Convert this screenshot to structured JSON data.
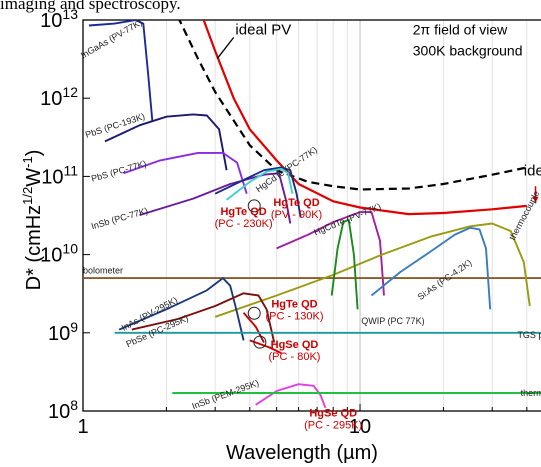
{
  "caption": "imaging and spectroscopy.",
  "chart_data": {
    "type": "line",
    "xlabel": "Wavelength (µm)",
    "ylabel": "D* (cmHz^1/2W^-1)",
    "xscale": "log",
    "yscale": "log",
    "xlim": [
      1,
      45
    ],
    "ylim": [
      100000000.0,
      10000000000000.0
    ],
    "xticks": [
      "1",
      "10"
    ],
    "yticks": [
      "10^13",
      "10^12",
      "10^11",
      "10^10",
      "10^9",
      "10^8"
    ],
    "grid": true,
    "annotation": [
      "2π field of view",
      "300K background"
    ],
    "series": [
      {
        "name": "ideal PV",
        "color": "#000000",
        "dash": true,
        "points": [
          [
            2.2,
            11000000000000.0
          ],
          [
            2.6,
            3200000000000.0
          ],
          [
            3,
            1200000000000.0
          ],
          [
            4,
            250000000000.0
          ],
          [
            5,
            120000000000.0
          ],
          [
            6.5,
            85000000000.0
          ],
          [
            8,
            75000000000.0
          ],
          [
            10,
            68000000000.0
          ],
          [
            15,
            70000000000.0
          ],
          [
            20,
            80000000000.0
          ],
          [
            30,
            105000000000.0
          ],
          [
            40,
            130000000000.0
          ]
        ]
      },
      {
        "name": "ideal PC",
        "color": "#e00000",
        "points": [
          [
            2.7,
            11000000000000.0
          ],
          [
            3,
            4000000000000.0
          ],
          [
            3.5,
            1000000000000.0
          ],
          [
            4,
            400000000000.0
          ],
          [
            5,
            160000000000.0
          ],
          [
            6,
            80000000000.0
          ],
          [
            8,
            48000000000.0
          ],
          [
            10,
            40000000000.0
          ],
          [
            15,
            33000000000.0
          ],
          [
            20,
            34000000000.0
          ],
          [
            30,
            38000000000.0
          ],
          [
            40,
            42000000000.0
          ]
        ]
      },
      {
        "name": "InGaAs (PV-77K)",
        "color": "#1a2a9a",
        "points": [
          [
            1.05,
            8500000000000.0
          ],
          [
            1.3,
            9000000000000.0
          ],
          [
            1.55,
            10000000000000.0
          ],
          [
            1.65,
            9000000000000.0
          ],
          [
            1.72,
            2000000000000.0
          ],
          [
            1.78,
            500000000000.0
          ]
        ]
      },
      {
        "name": "PbS (PC-193K)",
        "color": "#1a1a6e",
        "points": [
          [
            1.2,
            280000000000.0
          ],
          [
            1.6,
            450000000000.0
          ],
          [
            2,
            580000000000.0
          ],
          [
            2.5,
            620000000000.0
          ],
          [
            2.8,
            600000000000.0
          ],
          [
            3.1,
            400000000000.0
          ],
          [
            3.3,
            120000000000.0
          ]
        ]
      },
      {
        "name": "PbS (PC-77K)",
        "color": "#8a2be2",
        "points": [
          [
            1.4,
            110000000000.0
          ],
          [
            1.9,
            160000000000.0
          ],
          [
            2.6,
            200000000000.0
          ],
          [
            3.2,
            200000000000.0
          ],
          [
            3.6,
            150000000000.0
          ],
          [
            3.9,
            60000000000.0
          ]
        ]
      },
      {
        "name": "InSb (PC-77K)",
        "color": "#6a1b9a",
        "points": [
          [
            1.6,
            32000000000.0
          ],
          [
            2.5,
            52000000000.0
          ],
          [
            3.4,
            80000000000.0
          ],
          [
            4.5,
            105000000000.0
          ],
          [
            5.1,
            110000000000.0
          ],
          [
            5.4,
            50000000000.0
          ],
          [
            5.6,
            25000000000.0
          ]
        ]
      },
      {
        "name": "HgCdTe (PC-77K)",
        "color": "#1a2a8a",
        "points": [
          [
            3,
            60000000000.0
          ],
          [
            3.8,
            90000000000.0
          ],
          [
            4.5,
            120000000000.0
          ],
          [
            5.2,
            130000000000.0
          ],
          [
            5.6,
            120000000000.0
          ],
          [
            5.9,
            60000000000.0
          ],
          [
            6.1,
            30000000000.0
          ]
        ]
      },
      {
        "name": "HgTe QD (PV - 90K)",
        "color": "#40d0d0",
        "points": [
          [
            3.3,
            50000000000.0
          ],
          [
            4,
            85000000000.0
          ],
          [
            4.6,
            115000000000.0
          ],
          [
            5.2,
            125000000000.0
          ],
          [
            5.5,
            110000000000.0
          ],
          [
            5.7,
            60000000000.0
          ]
        ]
      },
      {
        "name": "HgCdTe (PV-77K)",
        "color": "#a020a0",
        "points": [
          [
            5,
            12000000000.0
          ],
          [
            6.5,
            18000000000.0
          ],
          [
            8,
            26000000000.0
          ],
          [
            10,
            35000000000.0
          ],
          [
            11,
            35000000000.0
          ],
          [
            11.8,
            15000000000.0
          ],
          [
            12.2,
            3000000000.0
          ]
        ]
      },
      {
        "name": "bolometer",
        "color": "#8b5a2b",
        "points": [
          [
            1,
            5000000000.0
          ],
          [
            45,
            5000000000.0
          ]
        ]
      },
      {
        "name": "thermocouple",
        "color": "#9a9a10",
        "points": [
          [
            3,
            1600000000.0
          ],
          [
            5,
            3000000000.0
          ],
          [
            8,
            5500000000.0
          ],
          [
            12,
            10000000000.0
          ],
          [
            18,
            17000000000.0
          ],
          [
            25,
            23000000000.0
          ],
          [
            30,
            25000000000.0
          ],
          [
            35,
            20000000000.0
          ],
          [
            39,
            8000000000.0
          ],
          [
            41,
            2200000000.0
          ]
        ]
      },
      {
        "name": "Si:As (PC-4.2K)",
        "color": "#3a7abf",
        "points": [
          [
            11,
            3000000000.0
          ],
          [
            14,
            6000000000.0
          ],
          [
            18,
            11000000000.0
          ],
          [
            22,
            18000000000.0
          ],
          [
            25,
            22000000000.0
          ],
          [
            27,
            21000000000.0
          ],
          [
            28.5,
            12000000000.0
          ],
          [
            29.5,
            2000000000.0
          ]
        ]
      },
      {
        "name": "QWIP (PC 77K)",
        "color": "#1a8a1a",
        "points": [
          [
            7.9,
            3000000000.0
          ],
          [
            8.3,
            12000000000.0
          ],
          [
            8.7,
            26000000000.0
          ],
          [
            9.1,
            28000000000.0
          ],
          [
            9.5,
            10000000000.0
          ],
          [
            9.8,
            2000000000.0
          ]
        ]
      },
      {
        "name": "InAs (PV-295K)",
        "color": "#1a3a7a",
        "points": [
          [
            1.35,
            1100000000.0
          ],
          [
            2,
            2000000000.0
          ],
          [
            2.8,
            3500000000.0
          ],
          [
            3.2,
            5000000000.0
          ],
          [
            3.4,
            4000000000.0
          ],
          [
            3.6,
            1800000000.0
          ],
          [
            3.8,
            800000000.0
          ]
        ]
      },
      {
        "name": "PbSe (PC-295K)",
        "color": "#7a1010",
        "points": [
          [
            1.5,
            1100000000.0
          ],
          [
            2.2,
            1500000000.0
          ],
          [
            3,
            2200000000.0
          ],
          [
            3.8,
            3200000000.0
          ],
          [
            4.3,
            3000000000.0
          ],
          [
            4.6,
            2000000000.0
          ],
          [
            4.9,
            750000000.0
          ]
        ]
      },
      {
        "name": "HgTe QD (PC - 130K)",
        "color": "#cc0000",
        "points": [
          [
            3.8,
            1800000000.0
          ],
          [
            4.2,
            1200000000.0
          ],
          [
            4.5,
            750000000.0
          ]
        ]
      },
      {
        "name": "TGS pyroelectric",
        "color": "#1a9a9a",
        "points": [
          [
            1.3,
            1000000000.0
          ],
          [
            45,
            1000000000.0
          ]
        ]
      },
      {
        "name": "HgSe QD (PC - 80K)",
        "color": "#cc0000",
        "points": [
          [
            4,
            800000000.0
          ],
          [
            4.7,
            650000000.0
          ],
          [
            5.2,
            550000000.0
          ]
        ]
      },
      {
        "name": "InSb (PEM-295K)",
        "color": "#e040e0",
        "points": [
          [
            4.2,
            120000000.0
          ],
          [
            5,
            180000000.0
          ],
          [
            6,
            220000000.0
          ],
          [
            6.8,
            210000000.0
          ],
          [
            7.2,
            160000000.0
          ],
          [
            7.5,
            110000000.0
          ]
        ]
      },
      {
        "name": "thermopile",
        "color": "#20c040",
        "points": [
          [
            2.1,
            170000000.0
          ],
          [
            45,
            170000000.0
          ]
        ]
      }
    ],
    "labels": [
      {
        "text": "InGaAs (PV-77K)",
        "x": 1.0,
        "y": 3200000000000.0,
        "rot": -30,
        "color": "#222"
      },
      {
        "name": "PbS (PC-193K)",
        "text": "PbS (PC-193K)",
        "x": 1.03,
        "y": 310000000000.0,
        "rot": -18,
        "color": "#222"
      },
      {
        "text": "PbS (PC-77K)",
        "x": 1.08,
        "y": 85000000000.0,
        "rot": -16,
        "color": "#222"
      },
      {
        "text": "InSb (PC-77K)",
        "x": 1.08,
        "y": 21000000000.0,
        "rot": -16,
        "color": "#222"
      },
      {
        "text": "HgCdTe (PC-77K)",
        "x": 4.3,
        "y": 62000000000.0,
        "rot": -35,
        "color": "#222"
      },
      {
        "text": "HgCdTe (PV-77K)",
        "x": 6.9,
        "y": 17500000000.0,
        "rot": -22,
        "color": "#222"
      },
      {
        "text": "bolometer",
        "x": 1.0,
        "y": 5700000000.0,
        "rot": 0,
        "color": "#222"
      },
      {
        "text": "thermocouple",
        "x": 36,
        "y": 15000000000.0,
        "rot": -62,
        "color": "#222"
      },
      {
        "text": "Si:As (PC-4.2K)",
        "x": 16.5,
        "y": 2600000000.0,
        "rot": -35,
        "color": "#222"
      },
      {
        "text": "QWIP (PC 77K)",
        "x": 10.1,
        "y": 1300000000.0,
        "rot": 0,
        "color": "#222"
      },
      {
        "text": "InAs (PV-295K)",
        "x": 1.4,
        "y": 1050000000.0,
        "rot": -28,
        "color": "#222"
      },
      {
        "text": "PbSe (PC-295K)",
        "x": 1.45,
        "y": 650000000.0,
        "rot": -24,
        "color": "#222"
      },
      {
        "text": "TGS pyr",
        "x": 37,
        "y": 860000000.0,
        "rot": 0,
        "color": "#222"
      },
      {
        "text": "InSb (PEM-295K)",
        "x": 2.5,
        "y": 105000000.0,
        "rot": -20,
        "color": "#222"
      },
      {
        "text": "thermopile",
        "x": 38,
        "y": 155000000.0,
        "rot": 0,
        "color": "#222"
      },
      {
        "text": "ideal PV",
        "x": 3.55,
        "y": 6500000000000.0,
        "rot": 0,
        "color": "#000",
        "size": 15
      },
      {
        "text": "ideal PC",
        "x": 39,
        "y": 102000000000.0,
        "rot": 0,
        "color": "#000",
        "size": 15
      },
      {
        "text": "2π field of view",
        "x": 15.5,
        "y": 6500000000000.0,
        "rot": 0,
        "color": "#000",
        "size": 14
      },
      {
        "text": "300K background",
        "x": 15.5,
        "y": 3500000000000.0,
        "rot": 0,
        "color": "#000",
        "size": 14
      }
    ],
    "qd_labels": [
      {
        "title": "HgTe QD",
        "detail": "(PV - 90K)",
        "x": 5.9,
        "y": 42000000000.0,
        "color": "#cc0000"
      },
      {
        "title": "HgTe QD",
        "detail": "(PC - 230K)",
        "x": 3.8,
        "y": 32000000000.0,
        "color": "#cc0000"
      },
      {
        "title": "HgTe QD",
        "detail": "(PC - 130K)",
        "x": 5.8,
        "y": 2100000000.0,
        "color": "#cc0000"
      },
      {
        "title": "HgSe QD",
        "detail": "(PC - 80K)",
        "x": 5.8,
        "y": 640000000.0,
        "color": "#cc0000"
      },
      {
        "title": "HgSe QD",
        "detail": "(PC - 295K)",
        "x": 8.0,
        "y": 85000000.0,
        "color": "#cc0000"
      }
    ]
  }
}
